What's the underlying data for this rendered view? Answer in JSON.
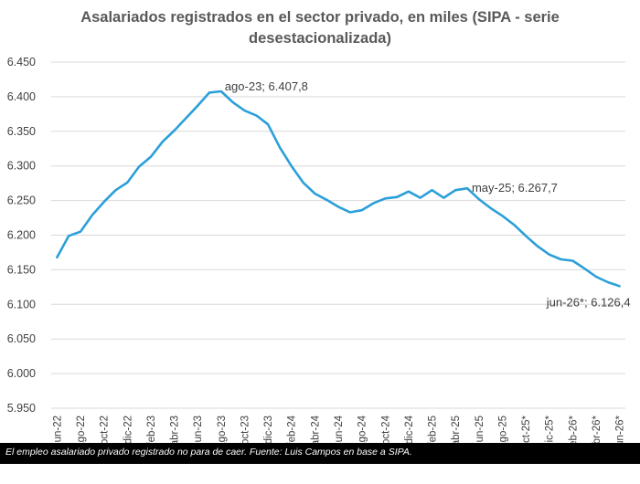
{
  "caption": "El empleo asalariado privado registrado no para de caer. Fuente: Luis Campos en base a SIPA.",
  "colors": {
    "line": "#2b9fd9",
    "grid": "#d9d9d9",
    "caption_bg": "#000000"
  },
  "chart_data": {
    "type": "line",
    "title_lines": [
      "Asalariados registrados en el sector privado, en miles (SIPA - serie",
      "desestacionalizada)"
    ],
    "ylim": [
      5950,
      6450
    ],
    "yticks": [
      5950,
      6000,
      6050,
      6100,
      6150,
      6200,
      6250,
      6300,
      6350,
      6400,
      6450
    ],
    "ytick_labels": [
      "5.950",
      "6.000",
      "6.050",
      "6.100",
      "6.150",
      "6.200",
      "6.250",
      "6.300",
      "6.350",
      "6.400",
      "6.450"
    ],
    "x": [
      "jun-22",
      "jul-22",
      "ago-22",
      "sep-22",
      "oct-22",
      "nov-22",
      "dic-22",
      "ene-23",
      "feb-23",
      "mar-23",
      "abr-23",
      "may-23",
      "jun-23",
      "jul-23",
      "ago-23",
      "sep-23",
      "oct-23",
      "nov-23",
      "dic-23",
      "ene-24",
      "feb-24",
      "mar-24",
      "abr-24",
      "may-24",
      "jun-24",
      "jul-24",
      "ago-24",
      "sep-24",
      "oct-24",
      "nov-24",
      "dic-24",
      "ene-25",
      "feb-25",
      "mar-25",
      "abr-25",
      "may-25",
      "jun-25",
      "jul-25",
      "ago-25",
      "sep-25",
      "oct-25*",
      "nov-25*",
      "dic-25*",
      "ene-26*",
      "feb-26*",
      "mar-26*",
      "abr-26*",
      "may-26*",
      "jun-26*"
    ],
    "xtick_labels": [
      "jun-22",
      "ago-22",
      "oct-22",
      "dic-22",
      "feb-23",
      "abr-23",
      "jun-23",
      "ago-23",
      "oct-23",
      "dic-23",
      "feb-24",
      "abr-24",
      "jun-24",
      "ago-24",
      "oct-24",
      "dic-24",
      "feb-25",
      "abr-25",
      "jun-25",
      "ago-25",
      "oct-25*",
      "dic-25*",
      "feb-26*",
      "abr-26*",
      "jun-26*"
    ],
    "series": [
      {
        "values": [
          6168,
          6199,
          6205,
          6229,
          6248,
          6265,
          6276,
          6299,
          6313,
          6335,
          6351,
          6369,
          6387,
          6406,
          6407.8,
          6392,
          6380,
          6373,
          6360,
          6327,
          6300,
          6276,
          6260,
          6251,
          6241,
          6233,
          6236,
          6246,
          6253,
          6255,
          6263,
          6254,
          6265,
          6254,
          6265,
          6267.7,
          6252,
          6239,
          6228,
          6215,
          6199,
          6184,
          6172,
          6165,
          6163,
          6152,
          6140,
          6132,
          6126.4
        ]
      }
    ],
    "annotations": [
      {
        "x": "ago-23",
        "text": "ago-23; 6.407,8"
      },
      {
        "x": "may-25",
        "text": "may-25; 6.267,7"
      },
      {
        "x": "jun-26*",
        "text": "jun-26*; 6.126,4"
      }
    ],
    "grid": true,
    "legend": "none"
  }
}
